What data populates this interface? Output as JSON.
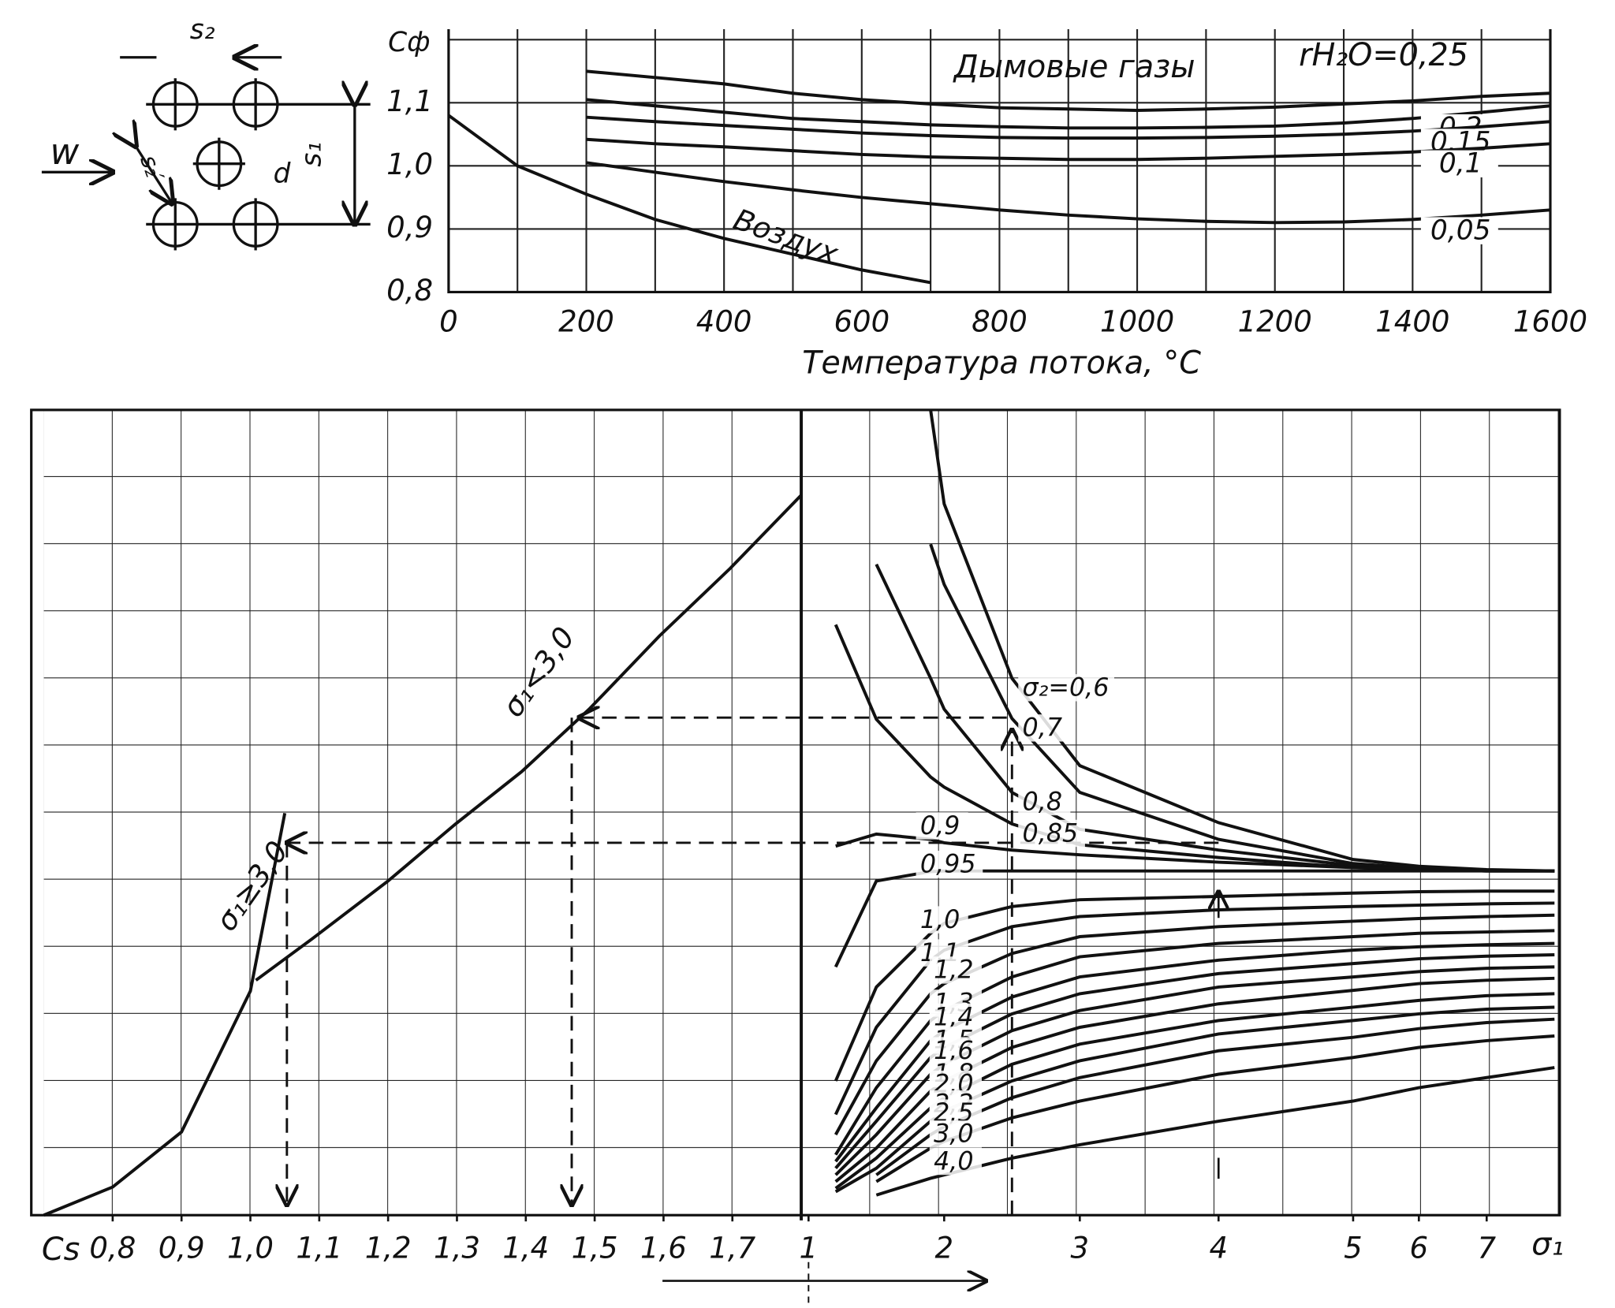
{
  "diagram": {
    "labels": [
      "s₂",
      "s₁",
      "s₂′",
      "d",
      "w"
    ]
  },
  "chart_data": [
    {
      "type": "line",
      "ylabel": "Сф",
      "xlabel": "Температура потока, °С",
      "annotation": "Дымовые газы",
      "x": [
        0,
        100,
        200,
        300,
        400,
        500,
        600,
        700,
        800,
        900,
        1000,
        1100,
        1200,
        1300,
        1400,
        1500,
        1600
      ],
      "xlim": [
        0,
        1600
      ],
      "xticks": [
        0,
        200,
        400,
        600,
        800,
        1000,
        1200,
        1400,
        1600
      ],
      "ylim": [
        0.8,
        1.2
      ],
      "yticks": [
        {
          "value": 0.8,
          "label": "0,8"
        },
        {
          "value": 0.9,
          "label": "0,9"
        },
        {
          "value": 1.0,
          "label": "1,0"
        },
        {
          "value": 1.1,
          "label": "1,1"
        }
      ],
      "grid": true,
      "color": "#111111",
      "series": [
        {
          "name": "Воздух",
          "values": [
            1.08,
            1.0,
            0.955,
            0.915,
            0.885,
            0.86,
            0.835,
            0.815,
            null,
            null,
            null,
            null,
            null,
            null,
            null,
            null,
            null
          ]
        },
        {
          "name": "rH₂O=0,25",
          "values": [
            null,
            null,
            1.15,
            1.14,
            1.13,
            1.115,
            1.105,
            1.098,
            1.092,
            1.09,
            1.088,
            1.09,
            1.093,
            1.098,
            1.103,
            1.11,
            1.115
          ]
        },
        {
          "name": "0,2",
          "values": [
            null,
            null,
            1.105,
            1.095,
            1.085,
            1.075,
            1.07,
            1.065,
            1.062,
            1.06,
            1.06,
            1.061,
            1.063,
            1.068,
            1.075,
            1.085,
            1.095
          ]
        },
        {
          "name": "0,15",
          "values": [
            null,
            null,
            1.077,
            1.07,
            1.064,
            1.058,
            1.052,
            1.048,
            1.045,
            1.044,
            1.044,
            1.045,
            1.047,
            1.05,
            1.055,
            1.062,
            1.07
          ]
        },
        {
          "name": "0,1",
          "values": [
            null,
            null,
            1.042,
            1.035,
            1.03,
            1.024,
            1.018,
            1.014,
            1.012,
            1.01,
            1.01,
            1.012,
            1.015,
            1.018,
            1.022,
            1.028,
            1.035
          ]
        },
        {
          "name": "0,05",
          "values": [
            null,
            null,
            1.005,
            0.99,
            0.975,
            0.962,
            0.95,
            0.94,
            0.93,
            0.922,
            0.916,
            0.912,
            0.91,
            0.911,
            0.915,
            0.922,
            0.93
          ]
        }
      ]
    },
    {
      "type": "nomogram",
      "ylim": [
        0,
        12
      ],
      "color": "#111111",
      "left": {
        "xlabel": "Cs",
        "xlim": [
          0.7,
          1.8
        ],
        "xticks": [
          {
            "value": 0.8,
            "label": "0,8"
          },
          {
            "value": 0.9,
            "label": "0,9"
          },
          {
            "value": 1.0,
            "label": "1,0"
          },
          {
            "value": 1.1,
            "label": "1,1"
          },
          {
            "value": 1.2,
            "label": "1,2"
          },
          {
            "value": 1.3,
            "label": "1,3"
          },
          {
            "value": 1.4,
            "label": "1,4"
          },
          {
            "value": 1.5,
            "label": "1,5"
          },
          {
            "value": 1.6,
            "label": "1,6"
          },
          {
            "value": 1.7,
            "label": "1,7"
          }
        ],
        "series": [
          {
            "name": "σ₁<3,0",
            "x": [
              1.008,
              1.09,
              1.2,
              1.298,
              1.394,
              1.492,
              1.594,
              1.697,
              1.8
            ],
            "values": [
              3.5,
              4.12,
              4.98,
              5.83,
              6.61,
              7.54,
              8.63,
              9.64,
              10.73
            ]
          },
          {
            "name": "σ₁≥3,0",
            "x": [
              0.7,
              0.8,
              0.9,
              1.0,
              1.05
            ],
            "values": [
              0,
              0.42,
              1.24,
              3.34,
              5.99
            ]
          }
        ]
      },
      "right": {
        "xlabel": "σ₁",
        "xlim": [
          1,
          8
        ],
        "xticks": [
          1,
          2,
          3,
          4,
          5,
          6,
          7
        ],
        "x": [
          1.2,
          1.5,
          1.9,
          2,
          2.5,
          3,
          4,
          5,
          6,
          7,
          8
        ],
        "series": [
          {
            "name": "σ₂=0,6",
            "values": [
              null,
              null,
              12,
              10.6,
              8.0,
              6.7,
              5.85,
              5.3,
              5.2,
              5.15,
              5.13
            ]
          },
          {
            "name": "0,7",
            "values": [
              null,
              null,
              10.0,
              9.4,
              7.4,
              6.3,
              5.6,
              5.24,
              5.17,
              5.14,
              5.13
            ]
          },
          {
            "name": "0,8",
            "values": [
              null,
              9.7,
              8.0,
              7.54,
              6.3,
              5.75,
              5.44,
              5.21,
              5.15,
              5.13,
              5.13
            ]
          },
          {
            "name": "0,85",
            "values": [
              8.8,
              7.39,
              6.53,
              6.38,
              5.83,
              5.52,
              5.33,
              5.18,
              5.15,
              5.13,
              5.13
            ]
          },
          {
            "name": "0,9",
            "values": [
              5.5,
              5.68,
              5.6,
              5.55,
              5.44,
              5.37,
              5.26,
              5.18,
              5.15,
              5.13,
              5.13
            ]
          },
          {
            "name": "0,95",
            "values": [
              3.7,
              4.98,
              5.12,
              5.13,
              5.13,
              5.13,
              5.13,
              5.13,
              5.13,
              5.13,
              5.13
            ]
          },
          {
            "name": "1,0",
            "values": [
              2.0,
              3.4,
              4.2,
              4.35,
              4.6,
              4.7,
              4.75,
              4.8,
              4.82,
              4.83,
              4.83
            ]
          },
          {
            "name": "1,1",
            "values": [
              1.5,
              2.8,
              3.8,
              3.95,
              4.3,
              4.45,
              4.55,
              4.6,
              4.62,
              4.64,
              4.65
            ]
          },
          {
            "name": "1,2",
            "values": [
              1.2,
              2.3,
              3.3,
              3.45,
              3.9,
              4.15,
              4.3,
              4.38,
              4.42,
              4.45,
              4.47
            ]
          },
          {
            "name": "1,3",
            "values": [
              0.9,
              1.9,
              2.9,
              3.05,
              3.55,
              3.85,
              4.05,
              4.15,
              4.2,
              4.22,
              4.24
            ]
          },
          {
            "name": "1,4",
            "values": [
              0.8,
              1.6,
              2.6,
              2.75,
              3.25,
              3.55,
              3.8,
              3.95,
              4.0,
              4.03,
              4.05
            ]
          },
          {
            "name": "1,5",
            "values": [
              0.7,
              1.4,
              2.35,
              2.5,
              3.0,
              3.3,
              3.6,
              3.75,
              3.82,
              3.86,
              3.88
            ]
          },
          {
            "name": "1,6",
            "values": [
              0.6,
              1.2,
              2.1,
              2.25,
              2.75,
              3.05,
              3.4,
              3.55,
              3.63,
              3.68,
              3.7
            ]
          },
          {
            "name": "1,8",
            "values": [
              0.5,
              1.0,
              1.85,
              2.0,
              2.5,
              2.8,
              3.15,
              3.35,
              3.45,
              3.5,
              3.53
            ]
          },
          {
            "name": "2,0",
            "values": [
              0.4,
              0.85,
              1.6,
              1.75,
              2.25,
              2.55,
              2.9,
              3.1,
              3.2,
              3.27,
              3.3
            ]
          },
          {
            "name": "2,2",
            "values": [
              0.35,
              0.7,
              1.4,
              1.55,
              2.0,
              2.3,
              2.7,
              2.9,
              3.0,
              3.07,
              3.1
            ]
          },
          {
            "name": "2,5",
            "values": [
              null,
              0.6,
              1.2,
              1.32,
              1.75,
              2.05,
              2.45,
              2.65,
              2.78,
              2.87,
              2.92
            ]
          },
          {
            "name": "3,0",
            "values": [
              null,
              0.5,
              1.0,
              1.1,
              1.45,
              1.7,
              2.1,
              2.35,
              2.5,
              2.6,
              2.67
            ]
          },
          {
            "name": "4,0",
            "values": [
              null,
              0.3,
              0.55,
              0.6,
              0.85,
              1.05,
              1.4,
              1.7,
              1.9,
              2.05,
              2.2
            ]
          }
        ]
      }
    }
  ]
}
